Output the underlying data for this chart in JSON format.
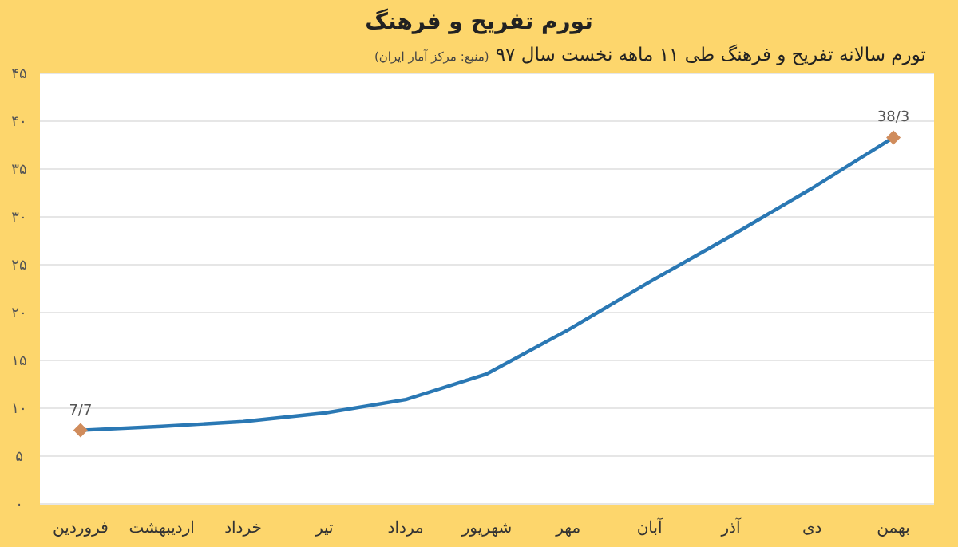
{
  "chart_data": {
    "type": "line",
    "title": "تورم تفریح و فرهنگ",
    "subtitle": "تورم سالانه تفریح و فرهنگ طی ۱۱ ماهه نخست سال ۹۷",
    "annotations": [
      "(منبع: مرکز آمار ایران)"
    ],
    "categories": [
      "فروردین",
      "اردیبهشت",
      "خرداد",
      "تیر",
      "مرداد",
      "شهریور",
      "مهر",
      "آبان",
      "آذر",
      "دی",
      "بهمن"
    ],
    "series": [
      {
        "color": "#2a78b4",
        "values": [
          7.7,
          8.1,
          8.6,
          9.5,
          10.9,
          13.6,
          18.2,
          23.2,
          28.0,
          33.0,
          38.3
        ]
      },
      {
        "type": "scatter",
        "marker": "diamond",
        "color": "#d08c5c",
        "x": [
          "فروردین",
          "بهمن"
        ],
        "values": [
          7.7,
          38.3
        ],
        "value_labels": [
          "7/7",
          "38/3"
        ]
      }
    ],
    "ylim": [
      0,
      45
    ],
    "yticks": [
      {
        "value": 0,
        "label": "۰"
      },
      {
        "value": 5,
        "label": "۵"
      },
      {
        "value": 10,
        "label": "۱۰"
      },
      {
        "value": 15,
        "label": "۱۵"
      },
      {
        "value": 20,
        "label": "۲۰"
      },
      {
        "value": 25,
        "label": "۲۵"
      },
      {
        "value": 30,
        "label": "۳۰"
      },
      {
        "value": 35,
        "label": "۳۵"
      },
      {
        "value": 40,
        "label": "۴۰"
      },
      {
        "value": 45,
        "label": "۴۵"
      }
    ],
    "grid": "y"
  }
}
